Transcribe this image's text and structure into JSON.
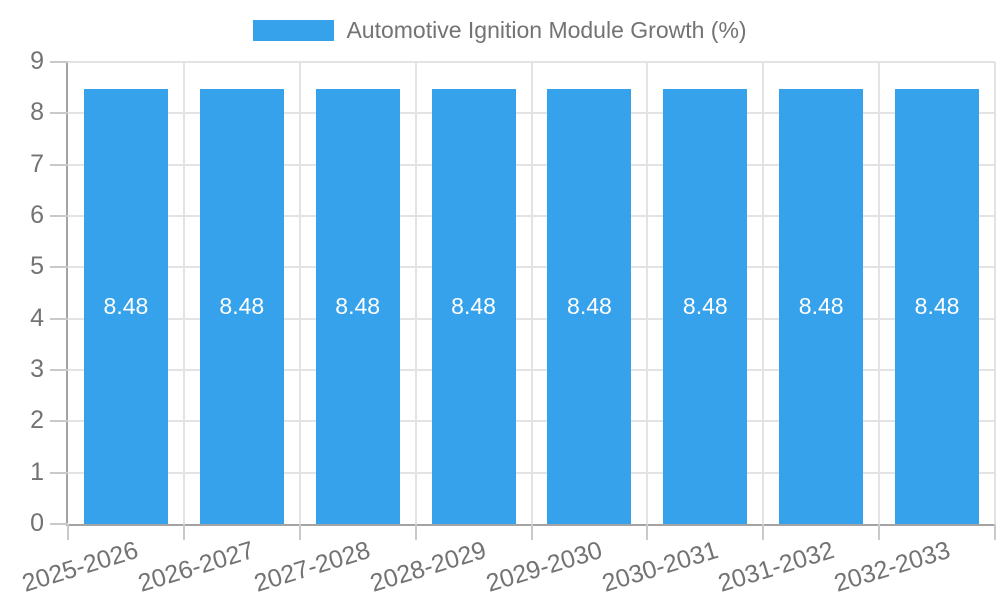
{
  "chart_data": {
    "type": "bar",
    "legend": {
      "label": "Automotive Ignition Module Growth (%)",
      "position": "top"
    },
    "categories": [
      "2025-2026",
      "2026-2027",
      "2027-2028",
      "2028-2029",
      "2029-2030",
      "2030-2031",
      "2031-2032",
      "2032-2033"
    ],
    "values": [
      8.48,
      8.48,
      8.48,
      8.48,
      8.48,
      8.48,
      8.48,
      8.48
    ],
    "value_labels": [
      "8.48",
      "8.48",
      "8.48",
      "8.48",
      "8.48",
      "8.48",
      "8.48",
      "8.48"
    ],
    "ylabel": "",
    "xlabel": "",
    "ylim": [
      0,
      9
    ],
    "yticks": [
      0,
      1,
      2,
      3,
      4,
      5,
      6,
      7,
      8,
      9
    ],
    "grid": true,
    "legend_position": "top",
    "colors": {
      "bar": "#36A2EB",
      "text": "#737373",
      "value_label": "#FFFFFF",
      "gridline": "#E3E3E3",
      "tick": "#C9C9C9",
      "axis": "#A3A3A3"
    }
  }
}
